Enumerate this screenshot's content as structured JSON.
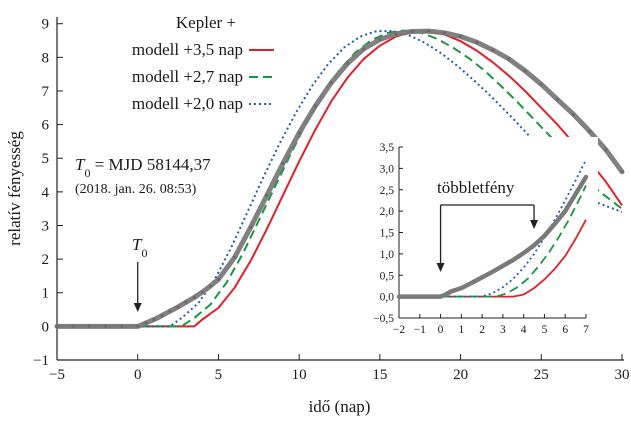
{
  "chart_data": {
    "type": "line",
    "xlabel": "idő (nap)",
    "ylabel": "relatív fényesség",
    "xlim": [
      -5,
      30
    ],
    "ylim": [
      -1,
      9.2
    ],
    "x_ticks": [
      -5,
      0,
      5,
      10,
      15,
      20,
      25,
      30
    ],
    "y_ticks": [
      -1,
      0,
      1,
      2,
      3,
      4,
      5,
      6,
      7,
      8,
      9
    ],
    "grid": false,
    "legend": {
      "placement": "top-right",
      "entries": [
        {
          "label": "Kepler +",
          "style": "markers",
          "color": "#7a7a7a"
        },
        {
          "label": "modell +3,5 nap",
          "style": "solid",
          "color": "#e0202a"
        },
        {
          "label": "modell +2,7 nap",
          "style": "dashed",
          "color": "#1a9641"
        },
        {
          "label": "modell +2,0 nap",
          "style": "dotted",
          "color": "#1f5fa8"
        }
      ]
    },
    "series": [
      {
        "name": "Kepler +",
        "style": "markers",
        "color": "#7a7a7a",
        "x": [
          -5,
          -4,
          -3,
          -2,
          -1,
          0,
          0.5,
          1,
          1.5,
          2,
          2.5,
          3,
          3.5,
          4,
          4.5,
          5,
          6,
          7,
          8,
          9,
          10,
          11,
          12,
          13,
          14,
          15,
          16,
          17,
          18,
          19,
          20,
          21,
          22,
          23,
          24,
          25,
          26,
          27,
          28,
          29,
          30
        ],
        "y": [
          0,
          0,
          0,
          0,
          0,
          0,
          0.1,
          0.2,
          0.32,
          0.45,
          0.58,
          0.72,
          0.86,
          1.02,
          1.2,
          1.4,
          2.05,
          2.95,
          3.9,
          4.85,
          5.75,
          6.55,
          7.25,
          7.82,
          8.25,
          8.53,
          8.7,
          8.77,
          8.78,
          8.73,
          8.62,
          8.45,
          8.22,
          7.95,
          7.6,
          7.2,
          6.75,
          6.3,
          5.8,
          5.25,
          4.6
        ]
      },
      {
        "name": "modell +3,5 nap",
        "style": "solid",
        "color": "#e0202a",
        "x": [
          -5,
          0,
          3.5,
          4,
          5,
          6,
          7,
          8,
          9,
          10,
          11,
          12,
          13,
          14,
          15,
          16,
          17,
          18,
          19,
          20,
          21,
          22,
          23,
          24,
          25,
          26,
          27,
          28,
          29,
          30
        ],
        "y": [
          0,
          0,
          0,
          0.2,
          0.55,
          1.15,
          1.95,
          2.9,
          3.9,
          4.9,
          5.85,
          6.7,
          7.4,
          7.95,
          8.35,
          8.62,
          8.76,
          8.78,
          8.68,
          8.48,
          8.2,
          7.85,
          7.45,
          7.0,
          6.5,
          6.0,
          5.45,
          4.9,
          4.3,
          3.6
        ]
      },
      {
        "name": "modell +2,7 nap",
        "style": "dashed",
        "color": "#1a9641",
        "x": [
          -5,
          0,
          2.7,
          3.5,
          4.5,
          5.5,
          6.5,
          7.5,
          8.5,
          9.5,
          10.5,
          11.5,
          12.5,
          13.5,
          14.5,
          15.5,
          16.5,
          17.5,
          18.5,
          19.5,
          20.5,
          21.5,
          22.5,
          23.5,
          24.5,
          25.5,
          26.5,
          27.5,
          28.5,
          30
        ],
        "y": [
          0,
          0,
          0,
          0.25,
          0.65,
          1.3,
          2.15,
          3.15,
          4.15,
          5.15,
          6.1,
          6.95,
          7.62,
          8.15,
          8.52,
          8.73,
          8.8,
          8.74,
          8.56,
          8.3,
          7.98,
          7.6,
          7.15,
          6.68,
          6.18,
          5.68,
          5.15,
          4.6,
          4.05,
          3.5
        ]
      },
      {
        "name": "modell +2,0 nap",
        "style": "dotted",
        "color": "#1f5fa8",
        "x": [
          -5,
          0,
          2.0,
          2.8,
          3.8,
          4.8,
          5.8,
          6.8,
          7.8,
          8.8,
          9.8,
          10.8,
          11.8,
          12.8,
          13.8,
          14.8,
          15.8,
          16.8,
          17.8,
          18.8,
          19.8,
          20.8,
          21.8,
          22.8,
          23.8,
          24.8,
          25.8,
          26.8,
          27.8,
          30
        ],
        "y": [
          0,
          0,
          0,
          0.28,
          0.72,
          1.42,
          2.35,
          3.4,
          4.45,
          5.45,
          6.35,
          7.15,
          7.8,
          8.3,
          8.62,
          8.78,
          8.78,
          8.66,
          8.43,
          8.12,
          7.75,
          7.33,
          6.88,
          6.4,
          5.9,
          5.38,
          4.85,
          4.32,
          3.8,
          3.4
        ]
      }
    ],
    "annotations": [
      {
        "text_html": "T<tspan baseline-shift=\"sub\" font-size=\"12\">0</tspan>",
        "label": "T0",
        "x": 0,
        "arrow_to_y": 0.5
      },
      {
        "label": "T0 = MJD 58144,37"
      },
      {
        "label": "(2018. jan. 26. 08:53)"
      }
    ],
    "inset": {
      "type": "line",
      "xlim": [
        -2,
        7
      ],
      "ylim": [
        -0.5,
        3.5
      ],
      "x_ticks": [
        -2,
        -1,
        0,
        1,
        2,
        3,
        4,
        5,
        6,
        7
      ],
      "y_ticks": [
        "-0,5",
        "0,0",
        "0,5",
        "1,0",
        "1,5",
        "2,0",
        "2,5",
        "3,0",
        "3,5"
      ],
      "y_tick_values": [
        -0.5,
        0,
        0.5,
        1,
        1.5,
        2,
        2.5,
        3,
        3.5
      ],
      "annotation": "többletfény",
      "arrows_at_x": [
        0,
        4.5
      ],
      "series": [
        {
          "name": "Kepler +",
          "color": "#7a7a7a",
          "x": [
            -2,
            -1.5,
            -1,
            -0.5,
            0,
            0.25,
            0.5,
            1,
            1.5,
            2,
            2.5,
            3,
            3.5,
            4,
            4.5,
            5,
            5.5,
            6,
            6.5,
            7
          ],
          "y": [
            0,
            0,
            0,
            0,
            0,
            0.05,
            0.12,
            0.2,
            0.32,
            0.45,
            0.58,
            0.72,
            0.86,
            1.02,
            1.2,
            1.42,
            1.7,
            2.0,
            2.4,
            2.8
          ]
        },
        {
          "name": "modell +3,5 nap",
          "color": "#e0202a",
          "x": [
            -2,
            3.5,
            4,
            4.5,
            5,
            5.5,
            6,
            6.5,
            7
          ],
          "y": [
            0,
            0,
            0.05,
            0.2,
            0.4,
            0.65,
            0.95,
            1.35,
            1.8
          ]
        },
        {
          "name": "modell +2,7 nap",
          "color": "#1a9641",
          "x": [
            -2,
            2.7,
            3.2,
            3.7,
            4.2,
            4.7,
            5.2,
            5.7,
            6.2,
            6.7,
            7
          ],
          "y": [
            0,
            0,
            0.08,
            0.22,
            0.42,
            0.7,
            1.02,
            1.4,
            1.82,
            2.3,
            2.6
          ]
        },
        {
          "name": "modell +2,0 nap",
          "color": "#1f5fa8",
          "x": [
            -2,
            2.0,
            2.5,
            3.0,
            3.5,
            4.0,
            4.5,
            5.0,
            5.5,
            6.0,
            6.5,
            7
          ],
          "y": [
            0,
            0,
            0.08,
            0.22,
            0.42,
            0.68,
            1.0,
            1.38,
            1.8,
            2.25,
            2.72,
            3.2
          ]
        }
      ]
    }
  }
}
